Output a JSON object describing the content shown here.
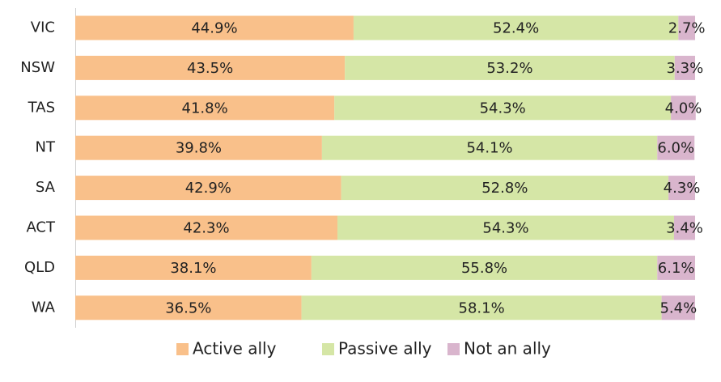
{
  "chart_data": {
    "type": "stacked_bar_horizontal",
    "categories": [
      "VIC",
      "NSW",
      "TAS",
      "NT",
      "SA",
      "ACT",
      "QLD",
      "WA"
    ],
    "xlim": [
      0,
      100
    ],
    "legend": "bottom",
    "series": [
      {
        "name": "Active ally",
        "color": "#f9c08a",
        "values": [
          44.9,
          43.5,
          41.8,
          39.8,
          42.9,
          42.3,
          38.1,
          36.5
        ],
        "value_labels": [
          "44.9%",
          "43.5%",
          "41.8%",
          "39.8%",
          "42.9%",
          "42.3%",
          "38.1%",
          "36.5%"
        ]
      },
      {
        "name": "Passive ally",
        "color": "#d5e6a6",
        "values": [
          52.4,
          53.2,
          54.3,
          54.1,
          52.8,
          54.3,
          55.8,
          58.1
        ],
        "value_labels": [
          "52.4%",
          "53.2%",
          "54.3%",
          "54.1%",
          "52.8%",
          "54.3%",
          "55.8%",
          "58.1%"
        ]
      },
      {
        "name": "Not an ally",
        "color": "#d9b5cd",
        "values": [
          2.7,
          3.3,
          4.0,
          6.0,
          4.3,
          3.4,
          6.1,
          5.4
        ],
        "value_labels": [
          "2.7%",
          "3.3%",
          "4.0%",
          "6.0%",
          "4.3%",
          "3.4%",
          "6.1%",
          "5.4%"
        ]
      }
    ]
  }
}
